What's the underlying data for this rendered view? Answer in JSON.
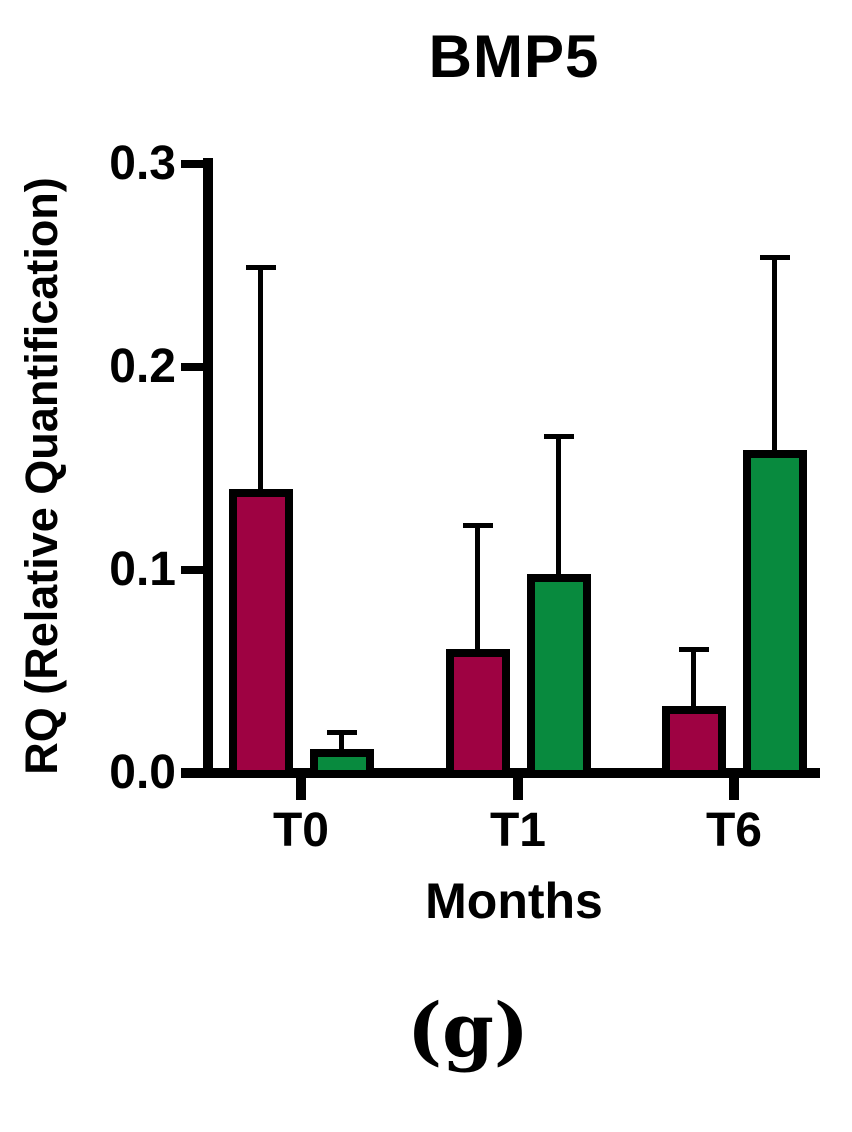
{
  "figure": {
    "caption": "(g)"
  },
  "chart_data": {
    "type": "bar",
    "title": "BMP5",
    "xlabel": "Months",
    "ylabel": "RQ (Relative Quantification)",
    "categories": [
      "T0",
      "T1",
      "T6"
    ],
    "series": [
      {
        "name": "maroon",
        "color": "#9E0242",
        "values": [
          0.14,
          0.061,
          0.033
        ],
        "errors_upper": [
          0.11,
          0.062,
          0.029
        ]
      },
      {
        "name": "green",
        "color": "#088A3E",
        "values": [
          0.012,
          0.098,
          0.159
        ],
        "errors_upper": [
          0.009,
          0.069,
          0.096
        ]
      }
    ],
    "ylim": [
      0,
      0.3
    ],
    "yticks": [
      0,
      0.1,
      0.2,
      0.3
    ],
    "grid": false,
    "legend": "none",
    "bar_outline_color": "#000000",
    "axis_color": "#000000"
  }
}
